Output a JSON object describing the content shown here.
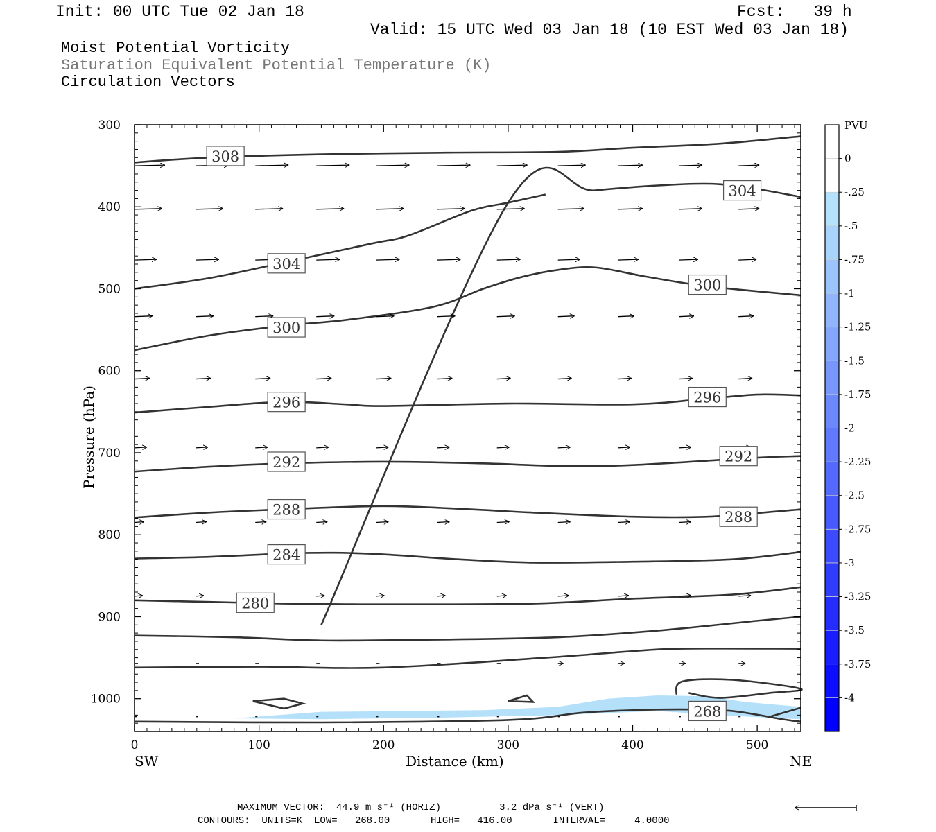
{
  "header": {
    "init": "Init: 00 UTC Tue 02 Jan 18",
    "fcst": "Fcst:   39 h",
    "valid": "Valid: 15 UTC Wed 03 Jan 18 (10 EST Wed 03 Jan 18)"
  },
  "titles": {
    "line1": "Moist Potential Vorticity",
    "line2": "Saturation Equivalent Potential Temperature (K)",
    "line3": "Circulation Vectors"
  },
  "footer": {
    "max_vector": "MAXIMUM VECTOR:  44.9 m s⁻¹ (HORIZ)          3.2 dPa s⁻¹ (VERT)",
    "contours": "CONTOURS:  UNITS=K  LOW=   268.00       HIGH=   416.00       INTERVAL=     4.0000"
  },
  "colors": {
    "contour": "#333333",
    "shading_light": "#b4e0fa",
    "shading_mid": "#a8d4f6",
    "axis": "#000000"
  },
  "chart_data": {
    "type": "cross-section",
    "xlabel": "Distance (km)",
    "ylabel": "Pressure (hPa)",
    "xlim": [
      0,
      535
    ],
    "ylim": [
      300,
      1040
    ],
    "y_reversed": true,
    "x_ticks": [
      0,
      100,
      200,
      300,
      400,
      500
    ],
    "y_ticks": [
      300,
      400,
      500,
      600,
      700,
      800,
      900,
      1000
    ],
    "x_end_labels": {
      "left": "SW",
      "right": "NE"
    },
    "contour_lines": [
      {
        "label": "308",
        "label_at": [
          73,
          338
        ],
        "points": [
          [
            0,
            346
          ],
          [
            60,
            340
          ],
          [
            150,
            336
          ],
          [
            250,
            334
          ],
          [
            340,
            333
          ],
          [
            400,
            328
          ],
          [
            470,
            323
          ],
          [
            535,
            314
          ]
        ]
      },
      {
        "label": "304",
        "label_at": [
          488,
          380
        ],
        "points": [
          [
            150,
            910
          ],
          [
            300,
            395
          ],
          [
            370,
            380
          ],
          [
            450,
            372
          ],
          [
            490,
            376
          ],
          [
            535,
            388
          ]
        ]
      },
      {
        "label": "304",
        "label_at": [
          122,
          469
        ],
        "points": [
          [
            0,
            500
          ],
          [
            60,
            487
          ],
          [
            120,
            468
          ],
          [
            190,
            445
          ],
          [
            220,
            435
          ],
          [
            270,
            405
          ],
          [
            300,
            395
          ],
          [
            330,
            385
          ]
        ]
      },
      {
        "label": "300",
        "label_at": [
          460,
          495
        ],
        "points": [
          [
            0,
            575
          ],
          [
            60,
            557
          ],
          [
            120,
            545
          ],
          [
            170,
            538
          ],
          [
            240,
            522
          ],
          [
            280,
            500
          ],
          [
            310,
            486
          ],
          [
            340,
            477
          ],
          [
            370,
            474
          ],
          [
            410,
            485
          ],
          [
            460,
            497
          ],
          [
            535,
            508
          ]
        ]
      },
      {
        "label": "300",
        "label_at": [
          122,
          547
        ],
        "points": []
      },
      {
        "label": "296",
        "label_at": [
          460,
          632
        ],
        "points": [
          [
            0,
            651
          ],
          [
            60,
            644
          ],
          [
            120,
            638
          ],
          [
            170,
            641
          ],
          [
            200,
            643
          ],
          [
            300,
            640
          ],
          [
            400,
            641
          ],
          [
            460,
            634
          ],
          [
            500,
            629
          ],
          [
            535,
            630
          ]
        ]
      },
      {
        "label": "296",
        "label_at": [
          122,
          638
        ],
        "points": []
      },
      {
        "label": "292",
        "label_at": [
          485,
          704
        ],
        "points": [
          [
            0,
            723
          ],
          [
            60,
            717
          ],
          [
            120,
            713
          ],
          [
            200,
            711
          ],
          [
            280,
            713
          ],
          [
            340,
            716
          ],
          [
            400,
            715
          ],
          [
            500,
            706
          ],
          [
            535,
            704
          ]
        ]
      },
      {
        "label": "292",
        "label_at": [
          122,
          711
        ],
        "points": []
      },
      {
        "label": "288",
        "label_at": [
          485,
          778
        ],
        "points": [
          [
            0,
            779
          ],
          [
            60,
            773
          ],
          [
            120,
            769
          ],
          [
            200,
            765
          ],
          [
            270,
            769
          ],
          [
            320,
            773
          ],
          [
            400,
            778
          ],
          [
            460,
            778
          ],
          [
            520,
            771
          ],
          [
            535,
            769
          ]
        ]
      },
      {
        "label": "288",
        "label_at": [
          122,
          769
        ],
        "points": []
      },
      {
        "label": "284",
        "label_at": [
          122,
          824
        ],
        "points": [
          [
            0,
            829
          ],
          [
            60,
            827
          ],
          [
            120,
            823
          ],
          [
            160,
            822
          ],
          [
            200,
            824
          ],
          [
            260,
            830
          ],
          [
            320,
            834
          ],
          [
            400,
            833
          ],
          [
            480,
            830
          ],
          [
            535,
            821
          ]
        ]
      },
      {
        "label": "280",
        "label_at": [
          97,
          883
        ],
        "points": [
          [
            0,
            880
          ],
          [
            60,
            882
          ],
          [
            120,
            884
          ],
          [
            200,
            885
          ],
          [
            320,
            884
          ],
          [
            400,
            878
          ],
          [
            480,
            873
          ],
          [
            535,
            864
          ]
        ]
      },
      {
        "label": "",
        "label_at": null,
        "points": [
          [
            0,
            923
          ],
          [
            80,
            925
          ],
          [
            150,
            929
          ],
          [
            240,
            928
          ],
          [
            340,
            925
          ],
          [
            420,
            917
          ],
          [
            500,
            905
          ],
          [
            535,
            900
          ]
        ]
      },
      {
        "label": "",
        "label_at": null,
        "points": [
          [
            0,
            962
          ],
          [
            100,
            961
          ],
          [
            200,
            962
          ],
          [
            330,
            950
          ],
          [
            400,
            942
          ],
          [
            440,
            939
          ],
          [
            535,
            939
          ]
        ]
      },
      {
        "label": "268",
        "label_at": [
          460,
          1015
        ],
        "points": [
          [
            0,
            1028
          ],
          [
            150,
            1029
          ],
          [
            300,
            1026
          ],
          [
            360,
            1017
          ],
          [
            400,
            1014
          ],
          [
            440,
            1013
          ],
          [
            480,
            1015
          ],
          [
            520,
            1025
          ],
          [
            535,
            1028
          ]
        ]
      },
      {
        "label": "",
        "label_at": null,
        "points": [
          [
            510,
            1022
          ],
          [
            535,
            1011
          ]
        ]
      },
      {
        "label": "",
        "label_at": null,
        "points": [
          [
            95,
            1003
          ],
          [
            120,
            1000
          ],
          [
            135,
            1006
          ],
          [
            120,
            1012
          ],
          [
            95,
            1003
          ]
        ]
      },
      {
        "label": "",
        "label_at": null,
        "points": [
          [
            300,
            1003
          ],
          [
            315,
            996
          ],
          [
            320,
            1004
          ],
          [
            300,
            1003
          ]
        ]
      },
      {
        "label": "",
        "label_at": null,
        "points": [
          [
            435,
            995
          ],
          [
            440,
            979
          ],
          [
            480,
            977
          ],
          [
            535,
            988
          ],
          [
            510,
            993
          ],
          [
            470,
            999
          ],
          [
            445,
            993
          ]
        ]
      }
    ],
    "shading": {
      "variable": "PVU",
      "region_value": -0.25,
      "outline": [
        [
          80,
          1024
        ],
        [
          150,
          1016
        ],
        [
          220,
          1015
        ],
        [
          280,
          1014
        ],
        [
          340,
          1010
        ],
        [
          380,
          1000
        ],
        [
          420,
          996
        ],
        [
          460,
          997
        ],
        [
          490,
          1004
        ],
        [
          535,
          1010
        ],
        [
          535,
          1025
        ],
        [
          480,
          1021
        ],
        [
          420,
          1015
        ],
        [
          340,
          1020
        ],
        [
          250,
          1023
        ],
        [
          150,
          1025
        ]
      ]
    },
    "colorbar": {
      "title": "PVU",
      "labels": [
        "0",
        "-.25",
        "-.5",
        "-.75",
        "-1",
        "-1.25",
        "-1.5",
        "-1.75",
        "-2",
        "-2.25",
        "-2.5",
        "-2.75",
        "-3",
        "-3.25",
        "-3.5",
        "-3.75",
        "-4"
      ]
    }
  }
}
